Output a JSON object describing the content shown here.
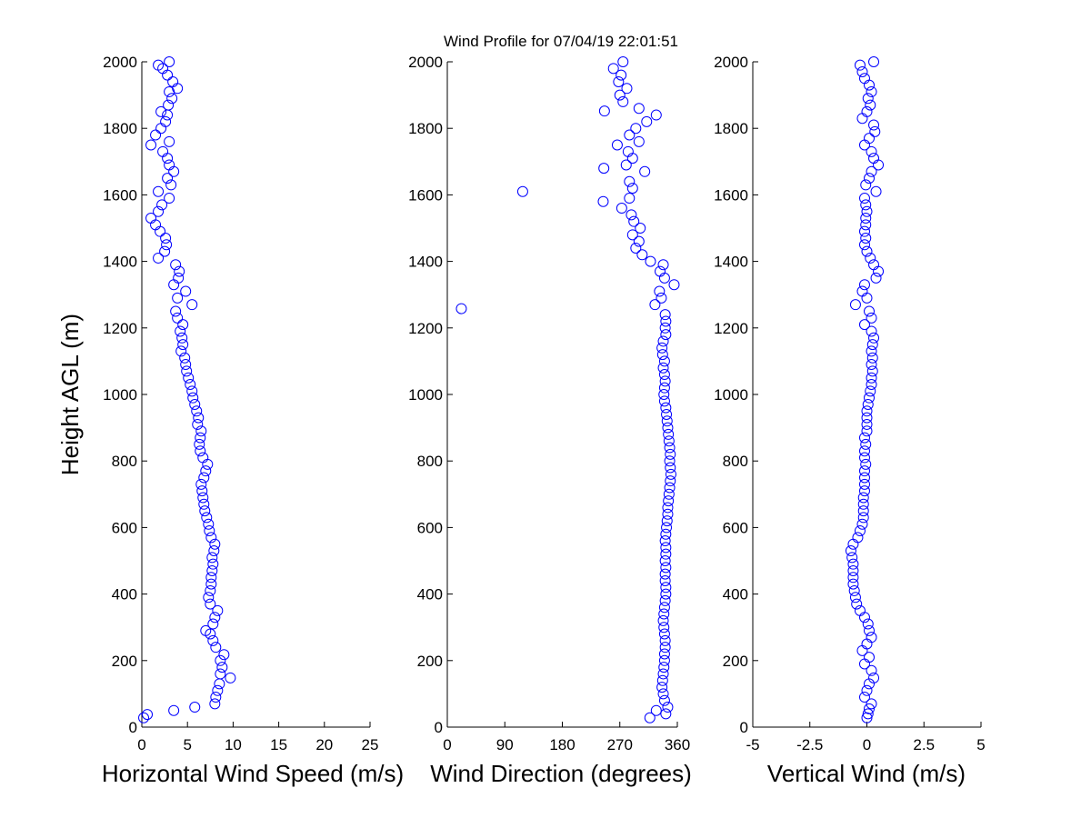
{
  "figure": {
    "title": "Wind Profile for  07/04/19 22:01:51"
  },
  "colors": {
    "marker": "#0000ff",
    "axis": "#000000",
    "background": "#ffffff"
  },
  "chart_data": [
    {
      "type": "scatter",
      "xlabel": "Horizontal Wind Speed (m/s)",
      "ylabel": "Height AGL (m)",
      "xlim": [
        0,
        25
      ],
      "ylim": [
        0,
        2000
      ],
      "xticks": [
        0,
        5,
        10,
        15,
        20,
        25
      ],
      "xtick_labels": [
        "0",
        "5",
        "10",
        "15",
        "20",
        "25"
      ],
      "yticks": [
        0,
        200,
        400,
        600,
        800,
        1000,
        1200,
        1400,
        1600,
        1800,
        2000
      ],
      "ytick_labels": [
        "0",
        "200",
        "400",
        "600",
        "800",
        "1000",
        "1200",
        "1400",
        "1600",
        "1800",
        "2000"
      ],
      "grid": false,
      "marker": "circle",
      "points": [
        [
          0.2,
          28
        ],
        [
          0.6,
          38
        ],
        [
          3.5,
          50
        ],
        [
          5.8,
          60
        ],
        [
          8.0,
          70
        ],
        [
          8.1,
          90
        ],
        [
          8.3,
          110
        ],
        [
          8.5,
          130
        ],
        [
          9.7,
          148
        ],
        [
          8.6,
          160
        ],
        [
          8.8,
          180
        ],
        [
          8.6,
          200
        ],
        [
          9.0,
          218
        ],
        [
          8.1,
          240
        ],
        [
          7.8,
          260
        ],
        [
          7.5,
          280
        ],
        [
          7.0,
          290
        ],
        [
          7.8,
          310
        ],
        [
          8.0,
          330
        ],
        [
          8.3,
          350
        ],
        [
          7.5,
          370
        ],
        [
          7.3,
          390
        ],
        [
          7.5,
          410
        ],
        [
          7.6,
          430
        ],
        [
          7.6,
          450
        ],
        [
          7.7,
          470
        ],
        [
          7.8,
          490
        ],
        [
          7.7,
          510
        ],
        [
          7.9,
          530
        ],
        [
          8.0,
          550
        ],
        [
          7.6,
          570
        ],
        [
          7.4,
          590
        ],
        [
          7.3,
          610
        ],
        [
          7.1,
          630
        ],
        [
          6.9,
          650
        ],
        [
          6.8,
          670
        ],
        [
          6.7,
          690
        ],
        [
          6.6,
          710
        ],
        [
          6.5,
          730
        ],
        [
          6.8,
          750
        ],
        [
          7.0,
          770
        ],
        [
          7.2,
          790
        ],
        [
          6.7,
          810
        ],
        [
          6.4,
          830
        ],
        [
          6.3,
          850
        ],
        [
          6.4,
          870
        ],
        [
          6.5,
          890
        ],
        [
          6.1,
          910
        ],
        [
          6.2,
          930
        ],
        [
          6.0,
          950
        ],
        [
          5.8,
          970
        ],
        [
          5.6,
          990
        ],
        [
          5.5,
          1010
        ],
        [
          5.3,
          1030
        ],
        [
          5.1,
          1050
        ],
        [
          4.9,
          1070
        ],
        [
          4.8,
          1090
        ],
        [
          4.7,
          1110
        ],
        [
          4.3,
          1130
        ],
        [
          4.5,
          1150
        ],
        [
          4.4,
          1170
        ],
        [
          4.2,
          1190
        ],
        [
          4.5,
          1210
        ],
        [
          3.9,
          1230
        ],
        [
          3.7,
          1250
        ],
        [
          5.5,
          1270
        ],
        [
          3.9,
          1290
        ],
        [
          4.8,
          1310
        ],
        [
          3.5,
          1330
        ],
        [
          4.0,
          1350
        ],
        [
          4.1,
          1370
        ],
        [
          3.7,
          1390
        ],
        [
          1.8,
          1410
        ],
        [
          2.5,
          1430
        ],
        [
          2.7,
          1450
        ],
        [
          2.6,
          1470
        ],
        [
          2.0,
          1490
        ],
        [
          1.5,
          1510
        ],
        [
          1.0,
          1530
        ],
        [
          1.8,
          1550
        ],
        [
          2.2,
          1570
        ],
        [
          3.0,
          1590
        ],
        [
          1.8,
          1610
        ],
        [
          3.2,
          1630
        ],
        [
          2.8,
          1650
        ],
        [
          3.5,
          1670
        ],
        [
          3.0,
          1690
        ],
        [
          2.8,
          1710
        ],
        [
          2.3,
          1730
        ],
        [
          1.0,
          1750
        ],
        [
          3.0,
          1760
        ],
        [
          1.5,
          1780
        ],
        [
          2.1,
          1800
        ],
        [
          2.6,
          1820
        ],
        [
          2.8,
          1840
        ],
        [
          2.1,
          1850
        ],
        [
          2.9,
          1870
        ],
        [
          3.3,
          1890
        ],
        [
          3.0,
          1910
        ],
        [
          3.9,
          1920
        ],
        [
          3.4,
          1940
        ],
        [
          2.8,
          1960
        ],
        [
          2.3,
          1980
        ],
        [
          1.8,
          1990
        ],
        [
          3.0,
          2000
        ]
      ]
    },
    {
      "type": "scatter",
      "xlabel": "Wind Direction (degrees)",
      "ylabel": "",
      "xlim": [
        0,
        360
      ],
      "ylim": [
        0,
        2000
      ],
      "xticks": [
        0,
        90,
        180,
        270,
        360
      ],
      "xtick_labels": [
        "0",
        "90",
        "180",
        "270",
        "360"
      ],
      "yticks": [
        0,
        200,
        400,
        600,
        800,
        1000,
        1200,
        1400,
        1600,
        1800,
        2000
      ],
      "ytick_labels": [
        "0",
        "200",
        "400",
        "600",
        "800",
        "1000",
        "1200",
        "1400",
        "1600",
        "1800",
        "2000"
      ],
      "grid": false,
      "marker": "circle",
      "points": [
        [
          317,
          28
        ],
        [
          327,
          50
        ],
        [
          342,
          40
        ],
        [
          345,
          60
        ],
        [
          340,
          80
        ],
        [
          338,
          100
        ],
        [
          336,
          120
        ],
        [
          337,
          140
        ],
        [
          338,
          160
        ],
        [
          339,
          180
        ],
        [
          340,
          200
        ],
        [
          340,
          220
        ],
        [
          341,
          240
        ],
        [
          341,
          260
        ],
        [
          340,
          280
        ],
        [
          339,
          300
        ],
        [
          338,
          320
        ],
        [
          339,
          340
        ],
        [
          340,
          360
        ],
        [
          341,
          380
        ],
        [
          342,
          400
        ],
        [
          342,
          420
        ],
        [
          341,
          440
        ],
        [
          341,
          460
        ],
        [
          342,
          480
        ],
        [
          341,
          500
        ],
        [
          342,
          520
        ],
        [
          342,
          540
        ],
        [
          341,
          560
        ],
        [
          342,
          580
        ],
        [
          343,
          600
        ],
        [
          344,
          620
        ],
        [
          345,
          640
        ],
        [
          345,
          660
        ],
        [
          346,
          680
        ],
        [
          347,
          700
        ],
        [
          348,
          720
        ],
        [
          349,
          740
        ],
        [
          350,
          760
        ],
        [
          349,
          780
        ],
        [
          348,
          800
        ],
        [
          349,
          820
        ],
        [
          348,
          840
        ],
        [
          347,
          860
        ],
        [
          346,
          880
        ],
        [
          345,
          900
        ],
        [
          344,
          920
        ],
        [
          343,
          940
        ],
        [
          342,
          960
        ],
        [
          340,
          980
        ],
        [
          339,
          1000
        ],
        [
          340,
          1020
        ],
        [
          341,
          1040
        ],
        [
          340,
          1060
        ],
        [
          338,
          1080
        ],
        [
          340,
          1100
        ],
        [
          337,
          1120
        ],
        [
          336,
          1140
        ],
        [
          338,
          1160
        ],
        [
          342,
          1180
        ],
        [
          341,
          1200
        ],
        [
          342,
          1220
        ],
        [
          341,
          1240
        ],
        [
          22,
          1258
        ],
        [
          325,
          1270
        ],
        [
          335,
          1290
        ],
        [
          332,
          1310
        ],
        [
          355,
          1330
        ],
        [
          340,
          1350
        ],
        [
          333,
          1370
        ],
        [
          338,
          1390
        ],
        [
          318,
          1400
        ],
        [
          305,
          1420
        ],
        [
          295,
          1440
        ],
        [
          300,
          1460
        ],
        [
          290,
          1480
        ],
        [
          302,
          1500
        ],
        [
          292,
          1520
        ],
        [
          288,
          1540
        ],
        [
          273,
          1560
        ],
        [
          244,
          1580
        ],
        [
          285,
          1590
        ],
        [
          118,
          1610
        ],
        [
          290,
          1620
        ],
        [
          285,
          1640
        ],
        [
          245,
          1680
        ],
        [
          309,
          1670
        ],
        [
          280,
          1690
        ],
        [
          290,
          1710
        ],
        [
          283,
          1730
        ],
        [
          266,
          1750
        ],
        [
          300,
          1760
        ],
        [
          285,
          1780
        ],
        [
          295,
          1800
        ],
        [
          312,
          1820
        ],
        [
          327,
          1840
        ],
        [
          246,
          1852
        ],
        [
          300,
          1860
        ],
        [
          275,
          1880
        ],
        [
          270,
          1900
        ],
        [
          281,
          1920
        ],
        [
          268,
          1940
        ],
        [
          272,
          1960
        ],
        [
          260,
          1980
        ],
        [
          275,
          2000
        ]
      ]
    },
    {
      "type": "scatter",
      "xlabel": "Vertical Wind (m/s)",
      "ylabel": "",
      "xlim": [
        -5,
        5
      ],
      "ylim": [
        0,
        2000
      ],
      "xticks": [
        -5,
        -2.5,
        0,
        2.5,
        5
      ],
      "xtick_labels": [
        "-5",
        "-2.5",
        "0",
        "2.5",
        "5"
      ],
      "yticks": [
        0,
        200,
        400,
        600,
        800,
        1000,
        1200,
        1400,
        1600,
        1800,
        2000
      ],
      "ytick_labels": [
        "0",
        "200",
        "400",
        "600",
        "800",
        "1000",
        "1200",
        "1400",
        "1600",
        "1800",
        "2000"
      ],
      "grid": false,
      "marker": "circle",
      "points": [
        [
          0.0,
          28
        ],
        [
          0.05,
          40
        ],
        [
          0.1,
          55
        ],
        [
          0.2,
          70
        ],
        [
          -0.1,
          90
        ],
        [
          0.0,
          110
        ],
        [
          0.1,
          130
        ],
        [
          0.3,
          148
        ],
        [
          0.2,
          170
        ],
        [
          -0.1,
          190
        ],
        [
          0.1,
          210
        ],
        [
          -0.2,
          230
        ],
        [
          0.0,
          250
        ],
        [
          0.2,
          270
        ],
        [
          0.1,
          290
        ],
        [
          0.05,
          310
        ],
        [
          -0.1,
          330
        ],
        [
          -0.3,
          350
        ],
        [
          -0.45,
          370
        ],
        [
          -0.5,
          390
        ],
        [
          -0.55,
          410
        ],
        [
          -0.6,
          430
        ],
        [
          -0.6,
          450
        ],
        [
          -0.6,
          470
        ],
        [
          -0.6,
          490
        ],
        [
          -0.65,
          510
        ],
        [
          -0.7,
          530
        ],
        [
          -0.6,
          550
        ],
        [
          -0.4,
          570
        ],
        [
          -0.3,
          590
        ],
        [
          -0.2,
          610
        ],
        [
          -0.15,
          630
        ],
        [
          -0.15,
          650
        ],
        [
          -0.15,
          670
        ],
        [
          -0.15,
          690
        ],
        [
          -0.1,
          710
        ],
        [
          -0.1,
          730
        ],
        [
          -0.1,
          750
        ],
        [
          -0.1,
          770
        ],
        [
          -0.05,
          790
        ],
        [
          -0.1,
          810
        ],
        [
          -0.1,
          830
        ],
        [
          -0.05,
          850
        ],
        [
          -0.1,
          870
        ],
        [
          0.0,
          890
        ],
        [
          0.0,
          910
        ],
        [
          0.0,
          930
        ],
        [
          0.0,
          950
        ],
        [
          0.05,
          970
        ],
        [
          0.1,
          990
        ],
        [
          0.15,
          1010
        ],
        [
          0.2,
          1030
        ],
        [
          0.2,
          1050
        ],
        [
          0.25,
          1070
        ],
        [
          0.2,
          1090
        ],
        [
          0.25,
          1110
        ],
        [
          0.2,
          1130
        ],
        [
          0.25,
          1150
        ],
        [
          0.3,
          1170
        ],
        [
          0.2,
          1190
        ],
        [
          -0.1,
          1210
        ],
        [
          0.2,
          1230
        ],
        [
          0.1,
          1250
        ],
        [
          -0.5,
          1270
        ],
        [
          0.0,
          1290
        ],
        [
          -0.2,
          1310
        ],
        [
          -0.1,
          1330
        ],
        [
          0.4,
          1350
        ],
        [
          0.5,
          1370
        ],
        [
          0.3,
          1390
        ],
        [
          0.15,
          1410
        ],
        [
          0.0,
          1430
        ],
        [
          -0.1,
          1450
        ],
        [
          -0.05,
          1470
        ],
        [
          -0.1,
          1490
        ],
        [
          -0.05,
          1510
        ],
        [
          -0.05,
          1530
        ],
        [
          0.0,
          1550
        ],
        [
          -0.05,
          1570
        ],
        [
          -0.1,
          1590
        ],
        [
          0.4,
          1610
        ],
        [
          -0.05,
          1630
        ],
        [
          0.1,
          1650
        ],
        [
          0.2,
          1670
        ],
        [
          0.5,
          1690
        ],
        [
          0.3,
          1710
        ],
        [
          0.2,
          1730
        ],
        [
          -0.1,
          1750
        ],
        [
          0.1,
          1770
        ],
        [
          0.35,
          1790
        ],
        [
          0.3,
          1810
        ],
        [
          -0.2,
          1830
        ],
        [
          0.0,
          1850
        ],
        [
          0.15,
          1870
        ],
        [
          0.05,
          1890
        ],
        [
          0.2,
          1910
        ],
        [
          0.1,
          1930
        ],
        [
          -0.1,
          1950
        ],
        [
          -0.2,
          1970
        ],
        [
          -0.3,
          1990
        ],
        [
          0.3,
          2000
        ]
      ]
    }
  ]
}
